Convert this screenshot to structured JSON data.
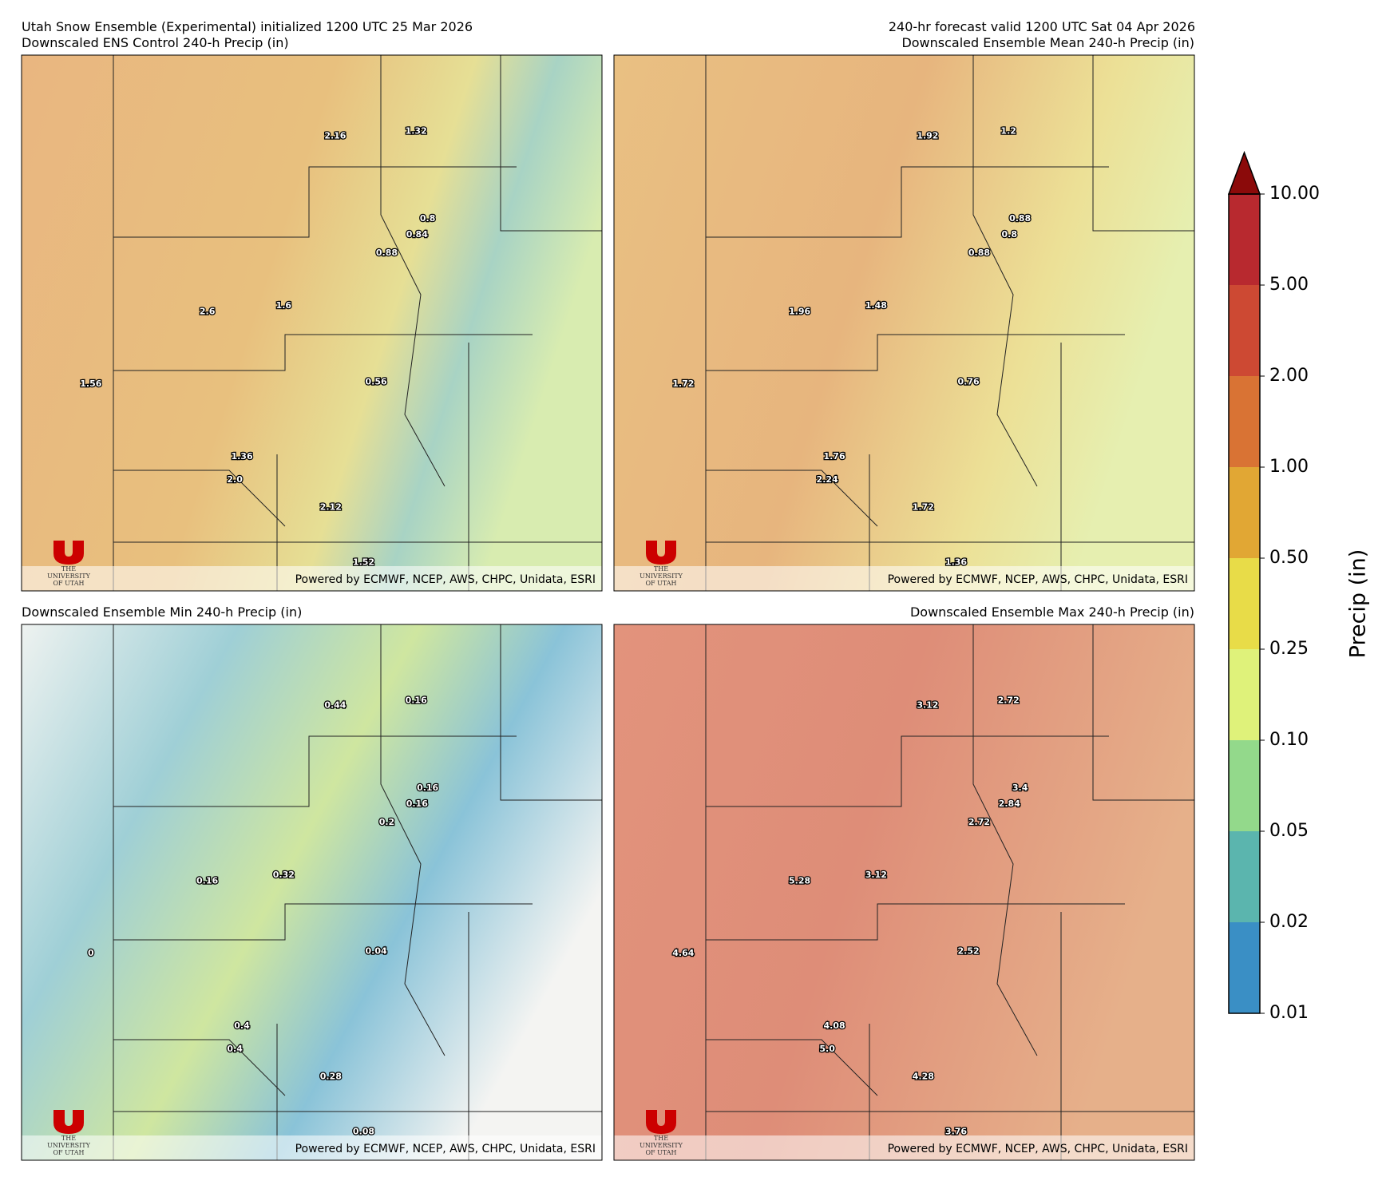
{
  "header": {
    "left_title": "Utah Snow Ensemble (Experimental) initialized 1200 UTC 25 Mar 2026",
    "right_title": "240-hr forecast valid 1200 UTC Sat 04 Apr 2026"
  },
  "credit": "Powered by ECMWF, NCEP, AWS, CHPC, Unidata, ESRI",
  "logo": [
    "THE",
    "UNIVERSITY",
    "OF UTAH"
  ],
  "panels": [
    {
      "title": "Downscaled ENS Control 240-h Precip (in)",
      "points": [
        "2.16",
        "1.32",
        "0.8",
        "0.84",
        "0.88",
        "2.6",
        "1.6",
        "1.56",
        "0.56",
        "1.36",
        "2.0",
        "2.12",
        "1.52"
      ]
    },
    {
      "title": "Downscaled Ensemble Mean 240-h Precip (in)",
      "points": [
        "1.92",
        "1.2",
        "0.88",
        "0.8",
        "0.88",
        "1.96",
        "1.48",
        "1.72",
        "0.76",
        "1.76",
        "2.24",
        "1.72",
        "1.36"
      ]
    },
    {
      "title": "Downscaled Ensemble Min 240-h Precip (in)",
      "points": [
        "0.44",
        "0.16",
        "0.16",
        "0.16",
        "0.2",
        "0.16",
        "0.32",
        "0",
        "0.04",
        "0.4",
        "0.4",
        "0.28",
        "0.08"
      ]
    },
    {
      "title": "Downscaled Ensemble Max 240-h Precip (in)",
      "points": [
        "3.12",
        "2.72",
        "3.4",
        "2.84",
        "2.72",
        "5.28",
        "3.12",
        "4.64",
        "2.52",
        "4.08",
        "5.0",
        "4.28",
        "3.76"
      ]
    }
  ],
  "colorbar": {
    "label": "Precip (in)",
    "ticks": [
      {
        "value": 0.01,
        "label": "0.01"
      },
      {
        "value": 0.02,
        "label": "0.02"
      },
      {
        "value": 0.05,
        "label": "0.05"
      },
      {
        "value": 0.1,
        "label": "0.10"
      },
      {
        "value": 0.25,
        "label": "0.25"
      },
      {
        "value": 0.5,
        "label": "0.50"
      },
      {
        "value": 1,
        "label": "1.00"
      },
      {
        "value": 2,
        "label": "2.00"
      },
      {
        "value": 5,
        "label": "5.00"
      },
      {
        "value": 10,
        "label": "10.00"
      }
    ],
    "colors": [
      "#3a8fc5",
      "#5bb5ae",
      "#93d98b",
      "#dff27a",
      "#e8dc48",
      "#e1a734",
      "#d97334",
      "#cd4933",
      "#b8292f"
    ],
    "extend_color": "#8b0a0a"
  }
}
